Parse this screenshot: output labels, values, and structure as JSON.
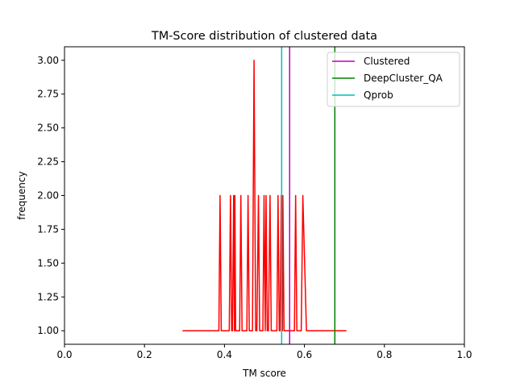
{
  "chart_data": {
    "type": "line",
    "title": "TM-Score distribution of clustered data",
    "xlabel": "TM score",
    "ylabel": "frequency",
    "xlim": [
      0.0,
      1.0
    ],
    "ylim": [
      0.9,
      3.1
    ],
    "xticks": [
      "0.0",
      "0.2",
      "0.4",
      "0.6",
      "0.8",
      "1.0"
    ],
    "xtick_values": [
      0.0,
      0.2,
      0.4,
      0.6,
      0.8,
      1.0
    ],
    "yticks": [
      "1.00",
      "1.25",
      "1.50",
      "1.75",
      "2.00",
      "2.25",
      "2.50",
      "2.75",
      "3.00"
    ],
    "ytick_values": [
      1.0,
      1.25,
      1.5,
      1.75,
      2.0,
      2.25,
      2.5,
      2.75,
      3.0
    ],
    "grid": false,
    "legend_position": "top-right",
    "series": [
      {
        "color": "#ff0000",
        "x": [
          0.295,
          0.386,
          0.389,
          0.392,
          0.412,
          0.415,
          0.418,
          0.42,
          0.423,
          0.425,
          0.426,
          0.428,
          0.431,
          0.438,
          0.441,
          0.444,
          0.456,
          0.459,
          0.462,
          0.47,
          0.474,
          0.478,
          0.481,
          0.485,
          0.488,
          0.496,
          0.499,
          0.502,
          0.504,
          0.507,
          0.51,
          0.514,
          0.517,
          0.52,
          0.531,
          0.534,
          0.537,
          0.539,
          0.542,
          0.545,
          0.546,
          0.549,
          0.552,
          0.575,
          0.578,
          0.581,
          0.592,
          0.596,
          0.605,
          0.705
        ],
        "y": [
          1,
          1,
          2,
          1,
          1,
          2,
          1,
          1,
          2,
          1,
          2,
          1,
          1,
          1,
          2,
          1,
          1,
          2,
          1,
          1,
          3,
          1,
          1,
          2,
          1,
          1,
          2,
          1,
          2,
          1,
          1,
          2,
          1,
          1,
          1,
          2,
          1,
          1,
          2,
          1,
          2,
          1,
          1,
          1,
          2,
          1,
          1,
          2,
          1,
          1
        ]
      }
    ],
    "vlines": [
      {
        "name": "Clustered",
        "x": 0.563,
        "color": "#bf00bf"
      },
      {
        "name": "DeepCluster_QA",
        "x": 0.676,
        "color": "#008000"
      },
      {
        "name": "Qprob",
        "x": 0.543,
        "color": "#00bfbf"
      }
    ]
  }
}
